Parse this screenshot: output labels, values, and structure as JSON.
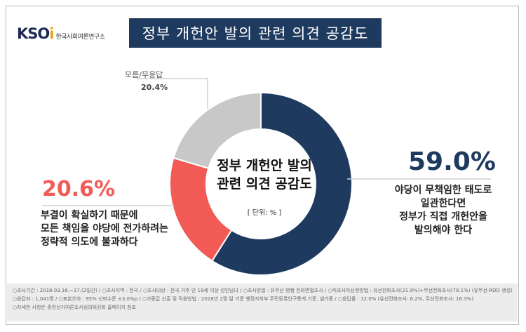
{
  "logo": {
    "mark_main": "KSO",
    "mark_accent": "i",
    "subtitle": "한국사회여론연구소"
  },
  "title": "정부 개헌안 발의 관련 의견 공감도",
  "center": {
    "title_line1": "정부 개헌안 발의",
    "title_line2": "관련 의견 공감도",
    "unit": "[ 단위: % ]"
  },
  "labels": {
    "dk_label": "모름/무응답",
    "dk_value": "20.4%",
    "yes_value": "59.0%",
    "yes_desc": [
      "야당이 무책임한 태도로",
      "일관한다면",
      "정부가 직접 개헌안을",
      "발의해야 한다"
    ],
    "no_value": "20.6%",
    "no_desc": [
      "부결이 확실하기 때문에",
      "모든 책임을 야당에 전가하려는",
      "정략적 의도에 불과하다"
    ]
  },
  "footer": {
    "line1": "○조사기간 : 2018.03.16.~17.(2일간)  / ○조사지역 : 전국  / ○조사대상 : 전국 거주 만 19세 이상 성인남녀  / ○조사방법 : 유무선 병행 전화면접조사  / ○피조사자선정방법 : 유선전화조사(21.9%)+무선전화조사(78.1%) (유무선-RDD 생성)",
    "line2": "○응답자 : 1,041명  / ○표본오차 : 95% 신뢰수준 ±3.0%p  / ○가중값 산출 및 적용방법 : 2018년 2월 말 기준 행정자치부 주민등록인구통계 기준, 셀가중  / ○응답률 : 12.0% (유선전화조사: 6.2%, 무선전화조사: 16.3%)",
    "line3": "○자세한 사항은 중앙선거여론조사심의위원회 홈페이지 참조"
  },
  "colors": {
    "yes": "#1e3a5f",
    "no": "#f25a55",
    "dk": "#c8c8c8",
    "title_bg": "#1e3a5f"
  },
  "chart_data": {
    "type": "pie",
    "donut": true,
    "unit": "%",
    "order_clockwise_from_top": [
      "yes",
      "no",
      "dk"
    ],
    "slices": [
      {
        "key": "yes",
        "value": 59.0,
        "color": "#1e3a5f"
      },
      {
        "key": "no",
        "value": 20.6,
        "color": "#f25a55"
      },
      {
        "key": "dk",
        "value": 20.4,
        "color": "#c8c8c8"
      }
    ]
  }
}
